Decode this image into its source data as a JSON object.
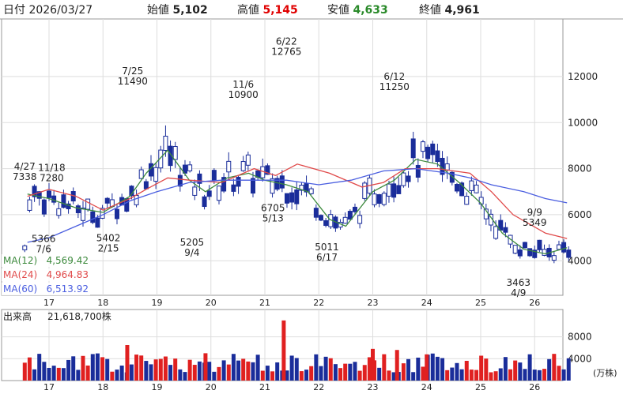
{
  "header": {
    "date_label": "日付",
    "date": "2026/03/27",
    "open_label": "始値",
    "open": "5,102",
    "high_label": "高値",
    "high": "5,145",
    "low_label": "安値",
    "low": "4,633",
    "close_label": "終値",
    "close": "4,961",
    "colors": {
      "high": "#e00000",
      "low": "#2a8a2a"
    }
  },
  "chart_data": [
    {
      "type": "candlestick",
      "x_ticks": [
        "17",
        "18",
        "19",
        "20",
        "21",
        "22",
        "23",
        "24",
        "25",
        "26"
      ],
      "y_ticks": [
        4000,
        6000,
        8000,
        10000,
        12000
      ],
      "ylim": [
        2500,
        14500
      ],
      "grid": true,
      "annotations": [
        {
          "x": 16.55,
          "value": 7338,
          "date": "4/27",
          "kind": "high"
        },
        {
          "x": 17.05,
          "value": 7280,
          "date": "11/18",
          "kind": "high"
        },
        {
          "x": 16.9,
          "value": 5366,
          "date": "7/6",
          "kind": "low"
        },
        {
          "x": 18.55,
          "value": 11490,
          "date": "7/25",
          "kind": "high"
        },
        {
          "x": 18.1,
          "value": 5402,
          "date": "2/15",
          "kind": "low"
        },
        {
          "x": 20.6,
          "value": 10900,
          "date": "11/6",
          "kind": "high"
        },
        {
          "x": 19.65,
          "value": 5205,
          "date": "9/4",
          "kind": "low"
        },
        {
          "x": 21.4,
          "value": 12765,
          "date": "6/22",
          "kind": "high"
        },
        {
          "x": 21.15,
          "value": 6705,
          "date": "5/13",
          "kind": "low"
        },
        {
          "x": 22.15,
          "value": 5011,
          "date": "6/17",
          "kind": "low"
        },
        {
          "x": 23.4,
          "value": 11250,
          "date": "6/12",
          "kind": "high"
        },
        {
          "x": 26.0,
          "value": 5349,
          "date": "9/9",
          "kind": "high"
        },
        {
          "x": 25.7,
          "value": 3463,
          "date": "4/9",
          "kind": "low"
        }
      ],
      "moving_averages": [
        {
          "name": "MA(12)",
          "value": "4,569.42",
          "color": "#3d8a3d",
          "points": [
            [
              16.6,
              6900
            ],
            [
              17,
              6700
            ],
            [
              17.5,
              6300
            ],
            [
              18,
              6100
            ],
            [
              18.5,
              6800
            ],
            [
              18.8,
              7800
            ],
            [
              19.2,
              8800
            ],
            [
              19.6,
              7500
            ],
            [
              19.9,
              7000
            ],
            [
              20.3,
              7600
            ],
            [
              20.7,
              7800
            ],
            [
              21,
              7500
            ],
            [
              21.4,
              7300
            ],
            [
              21.8,
              7000
            ],
            [
              22.2,
              5800
            ],
            [
              22.5,
              5500
            ],
            [
              23,
              7000
            ],
            [
              23.4,
              7500
            ],
            [
              23.8,
              8400
            ],
            [
              24.2,
              8200
            ],
            [
              24.6,
              7400
            ],
            [
              25,
              6500
            ],
            [
              25.4,
              5200
            ],
            [
              25.8,
              4500
            ],
            [
              26.2,
              4300
            ],
            [
              26.6,
              4569
            ]
          ]
        },
        {
          "name": "MA(24)",
          "value": "4,964.83",
          "color": "#e04a4a",
          "points": [
            [
              16.6,
              6800
            ],
            [
              17,
              7100
            ],
            [
              17.5,
              6800
            ],
            [
              18,
              6200
            ],
            [
              18.5,
              6700
            ],
            [
              18.8,
              7100
            ],
            [
              19.2,
              7600
            ],
            [
              19.6,
              7500
            ],
            [
              20.2,
              7400
            ],
            [
              20.8,
              8000
            ],
            [
              21.2,
              7700
            ],
            [
              21.6,
              8200
            ],
            [
              22.2,
              7800
            ],
            [
              22.8,
              7200
            ],
            [
              23.2,
              7400
            ],
            [
              23.6,
              8000
            ],
            [
              24.2,
              8000
            ],
            [
              24.8,
              7800
            ],
            [
              25.2,
              7000
            ],
            [
              25.6,
              6000
            ],
            [
              26.2,
              5200
            ],
            [
              26.6,
              4965
            ]
          ]
        },
        {
          "name": "MA(60)",
          "value": "6,513.92",
          "color": "#4a5ee0",
          "points": [
            [
              16.6,
              4800
            ],
            [
              17,
              5000
            ],
            [
              17.5,
              5500
            ],
            [
              18,
              6000
            ],
            [
              18.5,
              6600
            ],
            [
              19,
              7000
            ],
            [
              19.6,
              7400
            ],
            [
              20.2,
              7500
            ],
            [
              20.8,
              7500
            ],
            [
              21.4,
              7500
            ],
            [
              22,
              7300
            ],
            [
              22.6,
              7500
            ],
            [
              23.2,
              7900
            ],
            [
              23.8,
              8000
            ],
            [
              24.4,
              7800
            ],
            [
              24.8,
              7600
            ],
            [
              25.2,
              7300
            ],
            [
              25.8,
              7000
            ],
            [
              26.2,
              6700
            ],
            [
              26.6,
              6514
            ]
          ]
        }
      ]
    },
    {
      "type": "bar",
      "title_label": "出来高",
      "title_value": "21,618,700株",
      "y_ticks": [
        4000,
        8000
      ],
      "unit": "(万株)",
      "ylim": [
        0,
        13000
      ],
      "x_ticks": [
        "17",
        "18",
        "19",
        "20",
        "21",
        "22",
        "23",
        "24",
        "25",
        "26"
      ],
      "up_color": "#e02020",
      "down_color": "#1a2d9a"
    }
  ]
}
